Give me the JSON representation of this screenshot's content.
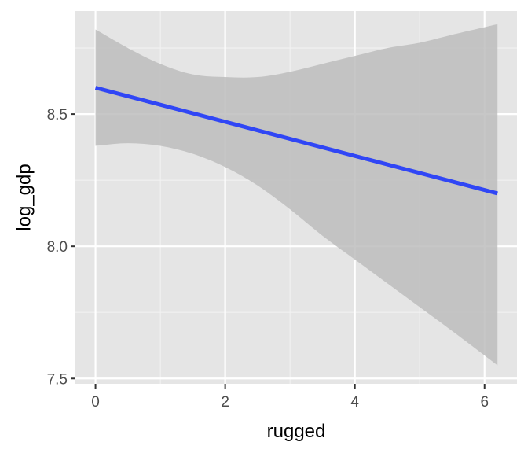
{
  "chart_data": {
    "type": "line",
    "title": "",
    "xlabel": "rugged",
    "ylabel": "log_gdp",
    "xlim": [
      -0.31,
      6.5
    ],
    "ylim": [
      7.48,
      8.89
    ],
    "x_ticks": [
      0,
      2,
      4,
      6
    ],
    "x_tick_labels": [
      "0",
      "2",
      "4",
      "6"
    ],
    "y_ticks": [
      7.5,
      8.0,
      8.5
    ],
    "y_tick_labels": [
      "7.5",
      "8.0",
      "8.5"
    ],
    "grid": true,
    "legend": "none",
    "series": [
      {
        "type": "line",
        "x": [
          0,
          6.2
        ],
        "y": [
          8.6,
          8.2
        ]
      }
    ],
    "confidence_band": {
      "x": [
        0,
        0.5,
        1,
        1.5,
        2,
        2.5,
        3,
        3.5,
        4,
        4.5,
        5,
        5.5,
        6.2
      ],
      "lower": [
        8.38,
        8.39,
        8.38,
        8.35,
        8.3,
        8.23,
        8.14,
        8.04,
        7.95,
        7.86,
        7.77,
        7.68,
        7.55
      ],
      "upper": [
        8.82,
        8.75,
        8.69,
        8.65,
        8.64,
        8.64,
        8.66,
        8.69,
        8.72,
        8.75,
        8.77,
        8.8,
        8.84
      ]
    },
    "colors": {
      "panel": "#e5e5e5",
      "grid_major": "#ffffff",
      "grid_minor": "#f2f2f2",
      "line": "#3046f5",
      "band": "#bdbdbd",
      "tick": "#333333"
    }
  }
}
